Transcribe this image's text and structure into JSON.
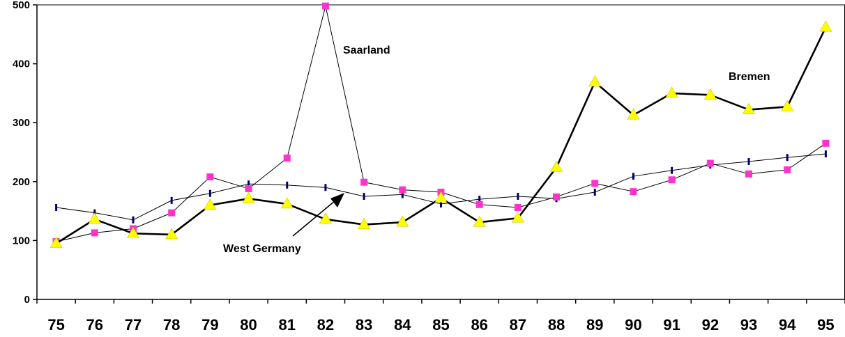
{
  "chart_data": {
    "type": "line",
    "categories": [
      "75",
      "76",
      "77",
      "78",
      "79",
      "80",
      "81",
      "82",
      "83",
      "84",
      "85",
      "86",
      "87",
      "88",
      "89",
      "90",
      "91",
      "92",
      "93",
      "94",
      "95"
    ],
    "ylim": [
      0,
      500
    ],
    "yticks": [
      "0",
      "100",
      "200",
      "300",
      "400",
      "500"
    ],
    "grid": false,
    "series": [
      {
        "name": "Saarland",
        "color": "#ff33cc",
        "marker": "square",
        "line_weight": "thin",
        "values": [
          98,
          113,
          120,
          147,
          208,
          188,
          240,
          498,
          199,
          186,
          182,
          161,
          156,
          174,
          197,
          183,
          203,
          231,
          213,
          220,
          265
        ]
      },
      {
        "name": "Bremen",
        "color": "#ffff00",
        "marker": "triangle",
        "line_weight": "thick",
        "values": [
          95,
          136,
          112,
          110,
          160,
          171,
          162,
          136,
          127,
          131,
          172,
          131,
          138,
          224,
          369,
          313,
          350,
          347,
          322,
          327,
          462
        ]
      },
      {
        "name": "West Germany",
        "color": "#000066",
        "marker": "dash",
        "line_weight": "thin",
        "values": [
          156,
          147,
          135,
          168,
          180,
          196,
          194,
          190,
          175,
          178,
          162,
          170,
          175,
          171,
          182,
          209,
          219,
          228,
          234,
          241,
          247
        ]
      }
    ],
    "annotations": [
      {
        "text": "Saarland",
        "series": "Saarland"
      },
      {
        "text": "Bremen",
        "series": "Bremen"
      },
      {
        "text": "West Germany",
        "series": "West Germany",
        "arrow": true
      }
    ]
  }
}
